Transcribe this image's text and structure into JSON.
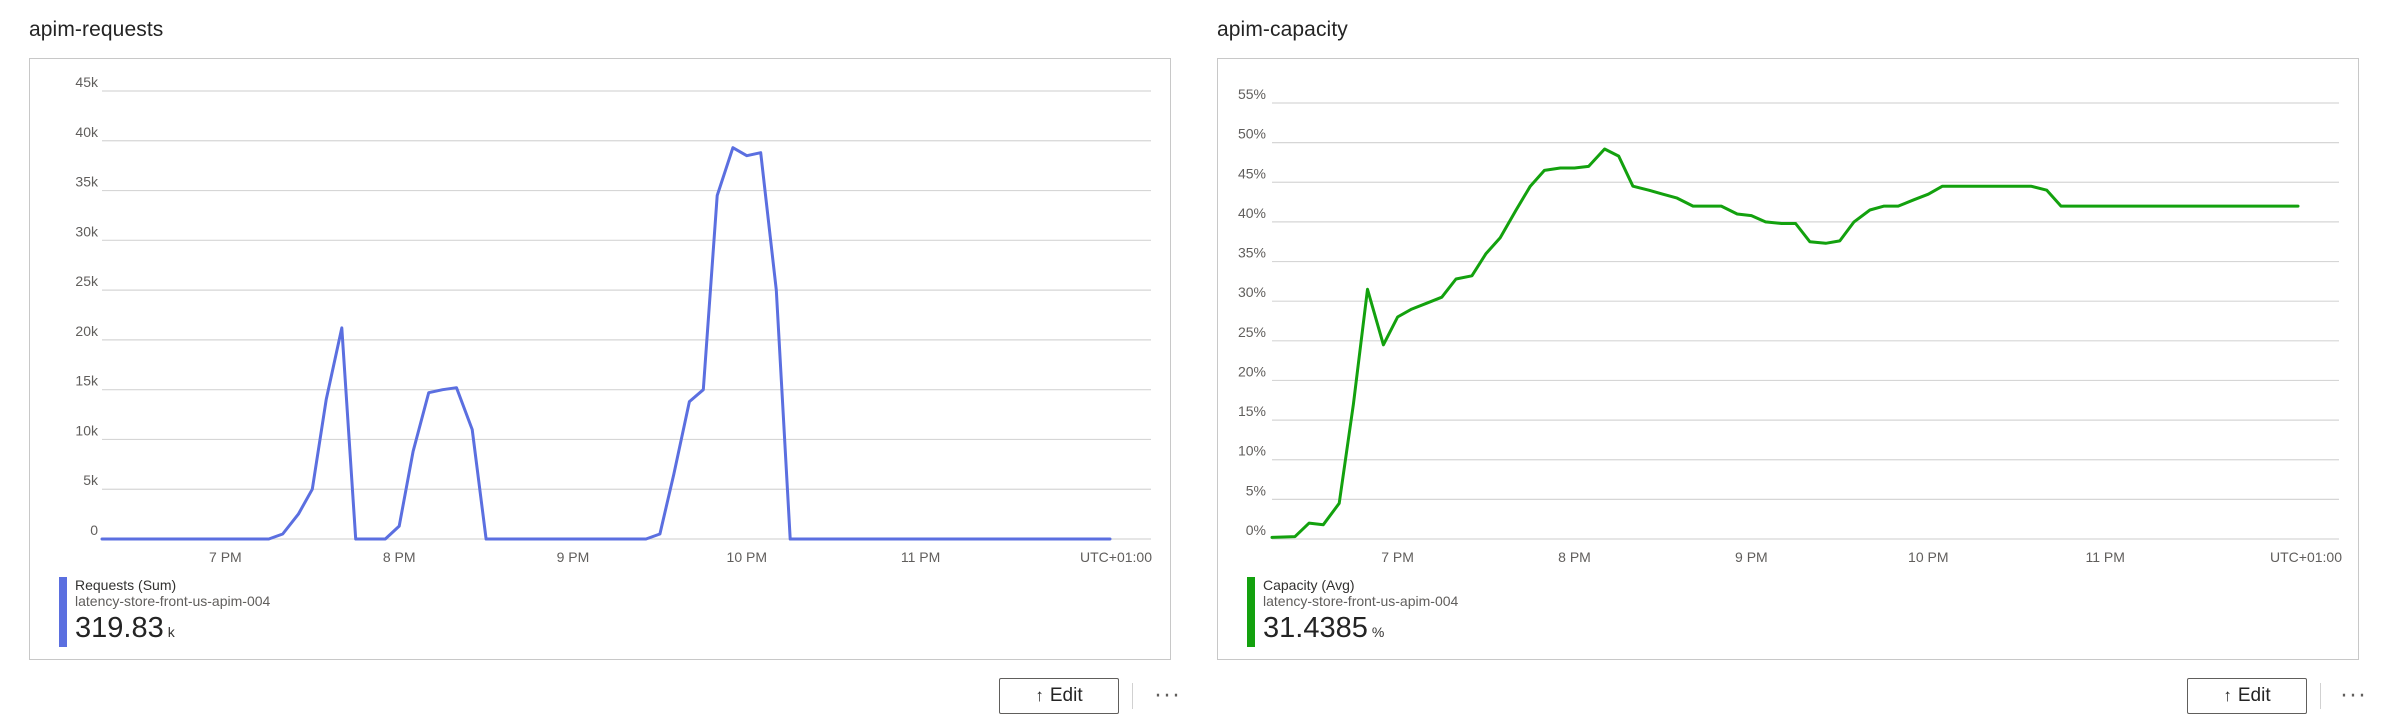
{
  "panels": [
    {
      "title": "apim-requests",
      "edit_label": "Edit",
      "edit_icon": "arrow-up-icon",
      "more_label": "···",
      "legend": {
        "name": "Requests (Sum)",
        "resource": "latency-store-front-us-apim-004",
        "value": "319.83",
        "unit": "k",
        "color": "#5b6fe0"
      }
    },
    {
      "title": "apim-capacity",
      "edit_label": "Edit",
      "edit_icon": "arrow-up-icon",
      "more_label": "···",
      "legend": {
        "name": "Capacity (Avg)",
        "resource": "latency-store-front-us-apim-004",
        "value": "31.4385",
        "unit": "%",
        "color": "#13a10e"
      }
    }
  ],
  "chart_data": [
    {
      "type": "line",
      "title": "apim-requests",
      "xlabel": "",
      "ylabel": "",
      "timezone_label": "UTC+01:00",
      "x_ticks": [
        "7 PM",
        "8 PM",
        "9 PM",
        "10 PM",
        "11 PM"
      ],
      "x_tick_hours": [
        19,
        20,
        21,
        22,
        23
      ],
      "xlim": [
        18.29,
        24.09
      ],
      "ylim": [
        0,
        45000
      ],
      "y_ticks": [
        0,
        5000,
        10000,
        15000,
        20000,
        25000,
        30000,
        35000,
        40000,
        45000
      ],
      "y_tick_labels": [
        "0",
        "5k",
        "10k",
        "15k",
        "20k",
        "25k",
        "30k",
        "35k",
        "40k",
        "45k"
      ],
      "grid": true,
      "legend_position": "bottom-left",
      "series": [
        {
          "name": "Requests (Sum)",
          "color": "#5b6fe0",
          "x": [
            18.29,
            19.25,
            19.33,
            19.42,
            19.5,
            19.58,
            19.67,
            19.75,
            19.83,
            19.92,
            20.0,
            20.08,
            20.17,
            20.25,
            20.33,
            20.42,
            20.5,
            20.58,
            21.42,
            21.5,
            21.58,
            21.67,
            21.75,
            21.83,
            21.92,
            22.0,
            22.08,
            22.17,
            22.25,
            24.09
          ],
          "y": [
            0,
            0,
            500,
            2500,
            5000,
            14000,
            21200,
            0,
            0,
            0,
            1300,
            8800,
            14700,
            15000,
            15200,
            11000,
            0,
            0,
            0,
            500,
            6500,
            13800,
            15000,
            34500,
            39300,
            38500,
            38800,
            25000,
            0,
            0
          ]
        }
      ]
    },
    {
      "type": "line",
      "title": "apim-capacity",
      "xlabel": "",
      "ylabel": "",
      "timezone_label": "UTC+01:00",
      "x_ticks": [
        "7 PM",
        "8 PM",
        "9 PM",
        "10 PM",
        "11 PM"
      ],
      "x_tick_hours": [
        19,
        20,
        21,
        22,
        23
      ],
      "xlim": [
        18.29,
        24.09
      ],
      "ylim": [
        0,
        55
      ],
      "y_ticks": [
        0,
        5,
        10,
        15,
        20,
        25,
        30,
        35,
        40,
        45,
        50,
        55
      ],
      "y_tick_labels": [
        "0%",
        "5%",
        "10%",
        "15%",
        "20%",
        "25%",
        "30%",
        "35%",
        "40%",
        "45%",
        "50%",
        "55%"
      ],
      "grid": true,
      "legend_position": "bottom-left",
      "series": [
        {
          "name": "Capacity (Avg)",
          "color": "#13a10e",
          "x": [
            18.29,
            18.42,
            18.5,
            18.58,
            18.67,
            18.75,
            18.83,
            18.92,
            19.0,
            19.08,
            19.17,
            19.25,
            19.33,
            19.42,
            19.5,
            19.58,
            19.67,
            19.75,
            19.83,
            19.92,
            20.0,
            20.08,
            20.17,
            20.25,
            20.33,
            20.42,
            20.5,
            20.58,
            20.67,
            20.75,
            20.83,
            20.92,
            21.0,
            21.08,
            21.17,
            21.25,
            21.33,
            21.42,
            21.5,
            21.58,
            21.67,
            21.75,
            21.83,
            21.92,
            22.0,
            22.08,
            22.17,
            22.25,
            22.33,
            22.42,
            22.5,
            22.58,
            22.67,
            22.75,
            22.83,
            24.09
          ],
          "y": [
            0.2,
            0.3,
            2.0,
            1.8,
            4.5,
            17.0,
            31.5,
            24.5,
            28.0,
            29.0,
            29.8,
            30.5,
            32.8,
            33.2,
            36.0,
            38.0,
            41.5,
            44.5,
            46.5,
            46.8,
            46.8,
            47.0,
            49.2,
            48.3,
            44.5,
            44.0,
            43.5,
            43.0,
            42.0,
            42.0,
            42.0,
            41.0,
            40.8,
            40.0,
            39.8,
            39.8,
            37.5,
            37.3,
            37.6,
            40.0,
            41.5,
            42.0,
            42.0,
            42.8,
            43.5,
            44.5,
            44.5,
            44.5,
            44.5,
            44.5,
            44.5,
            44.5,
            44.0,
            42.0,
            42.0,
            42.0
          ]
        }
      ]
    }
  ]
}
